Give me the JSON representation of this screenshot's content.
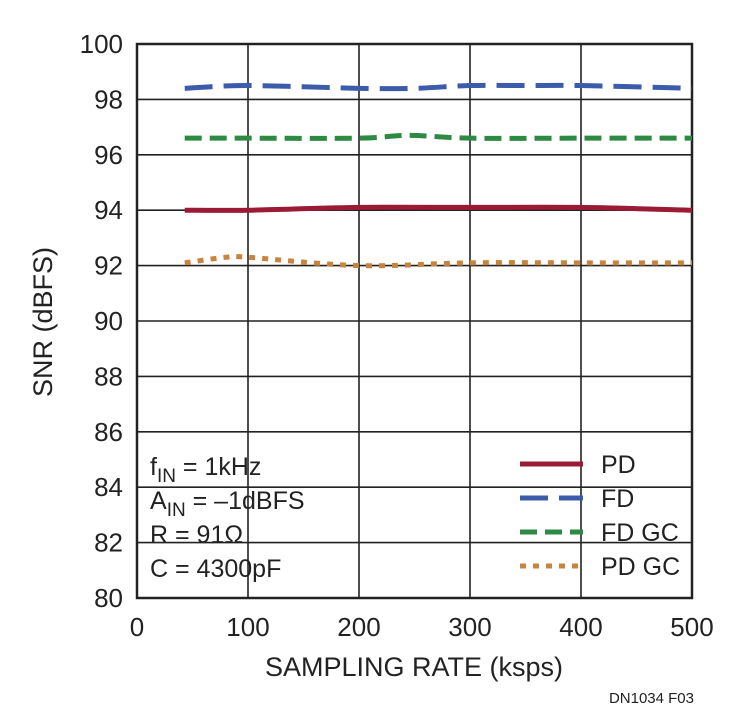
{
  "chart_data": {
    "type": "line",
    "xlabel": "SAMPLING RATE (ksps)",
    "ylabel": "SNR (dBFS)",
    "xlim": [
      0,
      500
    ],
    "ylim": [
      80,
      100
    ],
    "xticks": [
      0,
      100,
      200,
      300,
      400,
      500
    ],
    "yticks": [
      80,
      82,
      84,
      86,
      88,
      90,
      92,
      94,
      96,
      98,
      100
    ],
    "grid": true,
    "legend_position": "bottom-right",
    "series": [
      {
        "name": "PD",
        "color": "#9b1b37",
        "style": "solid",
        "x": [
          43,
          100,
          200,
          300,
          400,
          500
        ],
        "y": [
          94.0,
          94.0,
          94.1,
          94.1,
          94.1,
          94.0
        ]
      },
      {
        "name": "FD",
        "color": "#3b5bab",
        "style": "long-dash",
        "x": [
          43,
          100,
          200,
          250,
          300,
          350,
          400,
          500
        ],
        "y": [
          98.4,
          98.5,
          98.4,
          98.4,
          98.5,
          98.5,
          98.5,
          98.4
        ]
      },
      {
        "name": "FD GC",
        "color": "#2e8a43",
        "style": "dash",
        "x": [
          43,
          100,
          200,
          245,
          300,
          400,
          500
        ],
        "y": [
          96.6,
          96.6,
          96.6,
          96.7,
          96.6,
          96.6,
          96.6
        ]
      },
      {
        "name": "PD GC",
        "color": "#c8843d",
        "style": "dot",
        "x": [
          43,
          80,
          100,
          200,
          300,
          400,
          500
        ],
        "y": [
          92.1,
          92.3,
          92.3,
          92.0,
          92.1,
          92.1,
          92.1
        ]
      }
    ],
    "annotations": [
      {
        "main": "f",
        "sub": "IN",
        "rest": " = 1kHz"
      },
      {
        "main": "A",
        "sub": "IN",
        "rest": " = –1dBFS"
      },
      {
        "main": "R = 91Ω",
        "sub": "",
        "rest": ""
      },
      {
        "main": "C = 4300pF",
        "sub": "",
        "rest": ""
      }
    ],
    "figure_id": "DN1034 F03"
  }
}
